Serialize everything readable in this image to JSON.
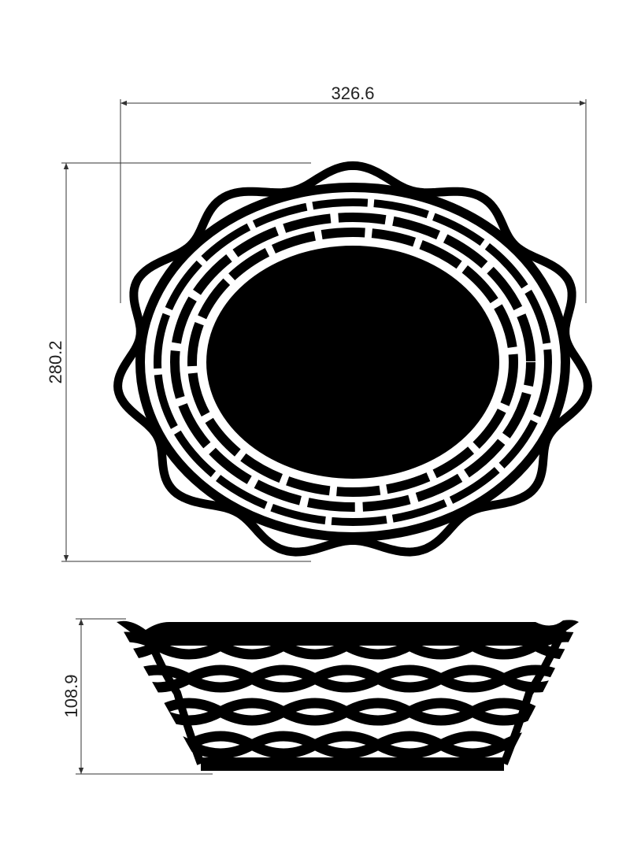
{
  "dimensions": {
    "width": "326.6",
    "depth": "280.2",
    "height": "108.9"
  },
  "colors": {
    "ink": "#000000",
    "dim_line": "#333333",
    "background": "#ffffff"
  }
}
